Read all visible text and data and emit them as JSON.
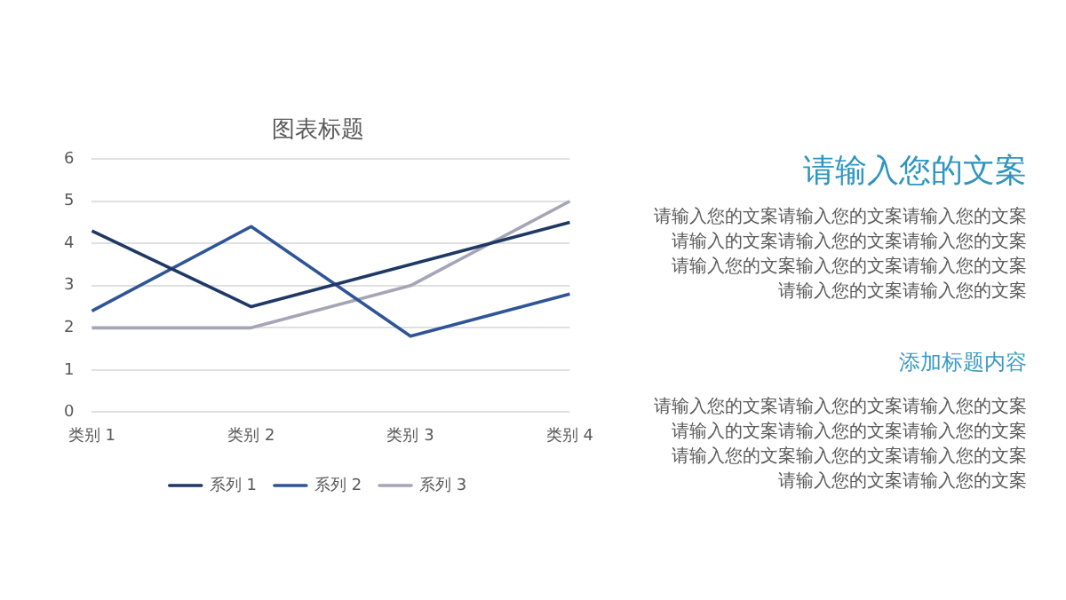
{
  "chart_data": [
    {
      "type": "line",
      "title": "图表标题",
      "categories": [
        "类别 1",
        "类别 2",
        "类别 3",
        "类别 4"
      ],
      "ylim": [
        0,
        6
      ],
      "yticks": [
        0,
        1,
        2,
        3,
        4,
        5,
        6
      ],
      "grid": "y",
      "legend": "bottom",
      "marker": "none",
      "line_style": "solid",
      "series": [
        {
          "name": "系列 1",
          "color": "#1f3864",
          "values": [
            4.3,
            2.5,
            3.5,
            4.5
          ]
        },
        {
          "name": "系列 2",
          "color": "#2f5597",
          "values": [
            2.4,
            4.4,
            1.8,
            2.8
          ]
        },
        {
          "name": "系列 3",
          "color": "#a5a5b8",
          "values": [
            2,
            2,
            3,
            5
          ]
        }
      ]
    },
    {
      "type": "other",
      "title": "请输入您的文案",
      "annotations": [
        "请输入您的文案请输入您的文案请输入您的文案",
        "请输入的文案请输入您的文案请输入您的文案",
        "请输入您的文案输入您的文案请输入您的文案",
        "请输入您的文案请输入您的文案"
      ]
    },
    {
      "type": "other",
      "subtitle": "添加标题内容",
      "annotations": [
        "请输入您的文案请输入您的文案请输入您的文案",
        "请输入的文案请输入您的文案请输入您的文案",
        "请输入您的文案输入您的文案请输入您的文案",
        "请输入您的文案请输入您的文案"
      ]
    }
  ]
}
